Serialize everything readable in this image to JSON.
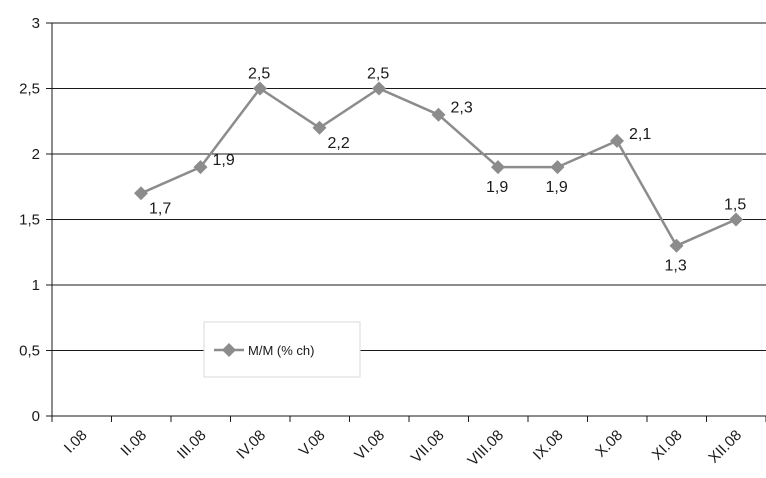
{
  "chart_data": {
    "type": "line",
    "categories": [
      "I.08",
      "II.08",
      "III.08",
      "IV.08",
      "V.08",
      "VI.08",
      "VII.08",
      "VIII.08",
      "IX.08",
      "X.08",
      "XI.08",
      "XII.08"
    ],
    "series": [
      {
        "name": "M/M (% ch)",
        "values": [
          null,
          1.7,
          1.9,
          2.5,
          2.2,
          2.5,
          2.3,
          1.9,
          1.9,
          2.1,
          1.3,
          1.5
        ],
        "labels": [
          "",
          "1,7",
          "1,9",
          "2,5",
          "2,2",
          "2,5",
          "2,3",
          "1,9",
          "1,9",
          "2,1",
          "1,3",
          "1,5"
        ],
        "color": "#8c8c8c",
        "marker": "diamond"
      }
    ],
    "ylim": [
      0,
      3
    ],
    "yticks": [
      0,
      0.5,
      1,
      1.5,
      2,
      2.5,
      3
    ],
    "ytick_labels": [
      "0",
      "0,5",
      "1",
      "1,5",
      "2",
      "2,5",
      "3"
    ],
    "grid": true,
    "legend_position": "bottom-left-inside",
    "title": "",
    "xlabel": "",
    "ylabel": ""
  }
}
